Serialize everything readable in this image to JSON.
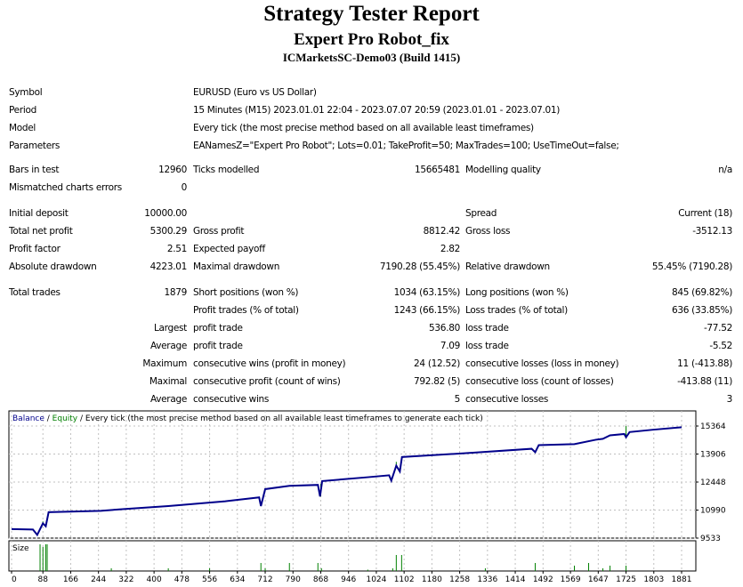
{
  "header": {
    "title": "Strategy Tester Report",
    "subtitle": "Expert Pro Robot_fix",
    "server": "ICMarketsSC-Demo03 (Build 1415)"
  },
  "info": [
    {
      "label": "Symbol",
      "value": "EURUSD (Euro vs US Dollar)"
    },
    {
      "label": "Period",
      "value": "15 Minutes (M15) 2023.01.01 22:04 - 2023.07.07 20:59 (2023.01.01 - 2023.07.01)"
    },
    {
      "label": "Model",
      "value": "Every tick (the most precise method based on all available least timeframes)"
    },
    {
      "label": "Parameters",
      "value": "EANamesZ=\"Expert Pro Robot\"; Lots=0.01; TakeProfit=50; MaxTrades=100; UseTimeOut=false;"
    }
  ],
  "rows": [
    [
      "Bars in test",
      "12960",
      "Ticks modelled",
      "15665481",
      "Modelling quality",
      "n/a"
    ],
    [
      "Mismatched charts errors",
      "0",
      "",
      "",
      "",
      ""
    ],
    [
      "Initial deposit",
      "10000.00",
      "",
      "",
      "Spread",
      "Current (18)"
    ],
    [
      "Total net profit",
      "5300.29",
      "Gross profit",
      "8812.42",
      "Gross loss",
      "-3512.13"
    ],
    [
      "Profit factor",
      "2.51",
      "Expected payoff",
      "2.82",
      "",
      ""
    ],
    [
      "Absolute drawdown",
      "4223.01",
      "Maximal drawdown",
      "7190.28 (55.45%)",
      "Relative drawdown",
      "55.45% (7190.28)"
    ],
    [
      "Total trades",
      "1879",
      "Short positions (won %)",
      "1034 (63.15%)",
      "Long positions (won %)",
      "845 (69.82%)"
    ],
    [
      "",
      "",
      "Profit trades (% of total)",
      "1243 (66.15%)",
      "Loss trades (% of total)",
      "636 (33.85%)"
    ],
    [
      "",
      "Largest",
      "profit trade",
      "536.80",
      "loss trade",
      "-77.52"
    ],
    [
      "",
      "Average",
      "profit trade",
      "7.09",
      "loss trade",
      "-5.52"
    ],
    [
      "",
      "Maximum",
      "consecutive wins (profit in money)",
      "24 (12.52)",
      "consecutive losses (loss in money)",
      "11 (-413.88)"
    ],
    [
      "",
      "Maximal",
      "consecutive profit (count of wins)",
      "792.82 (5)",
      "consecutive loss (count of losses)",
      "-413.88 (11)"
    ],
    [
      "",
      "Average",
      "consecutive wins",
      "5",
      "consecutive losses",
      "3"
    ]
  ],
  "chart_data": {
    "type": "line",
    "legend": {
      "balance": "Balance",
      "sep1": " / ",
      "equity": "Equity",
      "rest": " / Every tick (the most precise method based on all available least timeframes to generate each tick)"
    },
    "size_label": "Size",
    "colors": {
      "balance": "#00008b",
      "equity": "#008000",
      "size": "#008000",
      "grid": "#c0c0c0"
    },
    "x_ticks": [
      0,
      88,
      166,
      244,
      322,
      400,
      478,
      556,
      634,
      712,
      790,
      868,
      946,
      1024,
      1102,
      1180,
      1258,
      1336,
      1414,
      1492,
      1569,
      1647,
      1725,
      1803,
      1881
    ],
    "y_ticks": [
      15364,
      13906,
      12448,
      10990,
      9533
    ],
    "ylim": [
      9533,
      15364
    ],
    "xlim": [
      0,
      1881
    ],
    "balance": [
      [
        0,
        10000
      ],
      [
        60,
        9980
      ],
      [
        72,
        9700
      ],
      [
        80,
        10000
      ],
      [
        88,
        10300
      ],
      [
        96,
        10150
      ],
      [
        104,
        10880
      ],
      [
        250,
        10950
      ],
      [
        320,
        11050
      ],
      [
        440,
        11200
      ],
      [
        600,
        11450
      ],
      [
        695,
        11650
      ],
      [
        700,
        11200
      ],
      [
        712,
        12080
      ],
      [
        780,
        12250
      ],
      [
        860,
        12300
      ],
      [
        866,
        11700
      ],
      [
        872,
        12500
      ],
      [
        1000,
        12700
      ],
      [
        1060,
        12800
      ],
      [
        1066,
        12520
      ],
      [
        1080,
        13300
      ],
      [
        1090,
        13000
      ],
      [
        1096,
        13750
      ],
      [
        1300,
        13980
      ],
      [
        1460,
        14180
      ],
      [
        1470,
        14000
      ],
      [
        1480,
        14370
      ],
      [
        1580,
        14420
      ],
      [
        1640,
        14650
      ],
      [
        1660,
        14700
      ],
      [
        1680,
        14880
      ],
      [
        1720,
        14950
      ],
      [
        1725,
        14780
      ],
      [
        1735,
        15050
      ],
      [
        1800,
        15170
      ],
      [
        1881,
        15300
      ]
    ],
    "equity_spikes": [
      [
        88,
        10400
      ],
      [
        712,
        12000
      ],
      [
        868,
        12350
      ],
      [
        1080,
        13500
      ],
      [
        1725,
        15364
      ]
    ],
    "size_bars": [
      [
        80,
        1
      ],
      [
        88,
        0.9
      ],
      [
        96,
        1
      ],
      [
        100,
        1
      ],
      [
        280,
        0.1
      ],
      [
        440,
        0.1
      ],
      [
        556,
        0.1
      ],
      [
        700,
        0.3
      ],
      [
        712,
        0.1
      ],
      [
        780,
        0.3
      ],
      [
        860,
        0.3
      ],
      [
        870,
        0.1
      ],
      [
        1000,
        0.05
      ],
      [
        1070,
        0.1
      ],
      [
        1080,
        0.6
      ],
      [
        1095,
        0.6
      ],
      [
        1330,
        0.1
      ],
      [
        1470,
        0.3
      ],
      [
        1580,
        0.2
      ],
      [
        1620,
        0.3
      ],
      [
        1660,
        0.1
      ],
      [
        1680,
        0.2
      ],
      [
        1725,
        0.2
      ]
    ]
  }
}
